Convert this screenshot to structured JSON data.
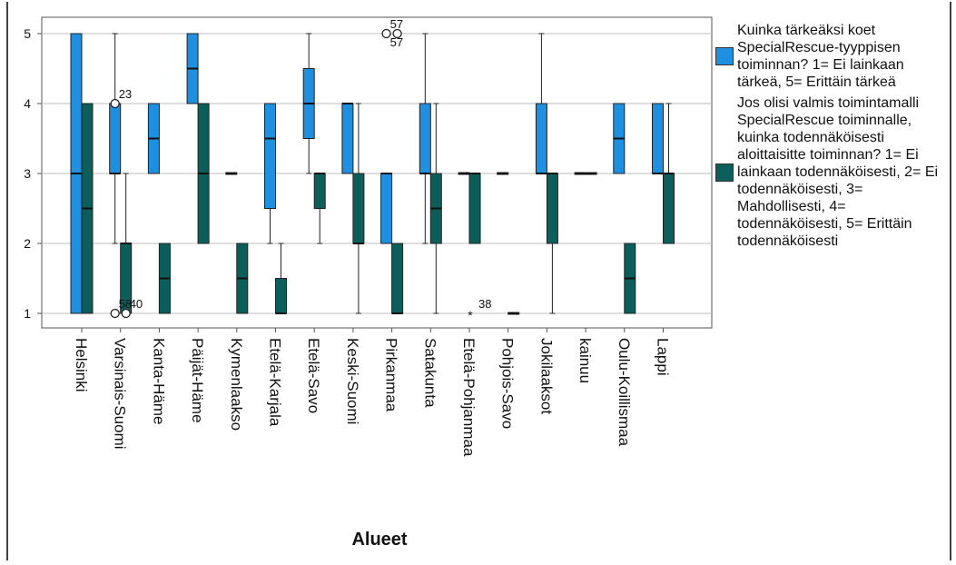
{
  "chart_data": {
    "type": "boxplot",
    "xlabel": "Alueet",
    "ylabel": "",
    "ylim": [
      1,
      5
    ],
    "yticks": [
      "1",
      "2",
      "3",
      "4",
      "5"
    ],
    "grid": "horizontal",
    "legend_position": "right",
    "categories": [
      "Helsinki",
      "Varsinais-Suomi",
      "Kanta-Häme",
      "Päijät-Häme",
      "Kymenlaakso",
      "Etelä-Karjala",
      "Etelä-Savo",
      "Keski-Suomi",
      "Pirkanmaa",
      "Satakunta",
      "Etelä-Pohjanmaa",
      "Pohjois-Savo",
      "Jokilaaksot",
      "kainuu",
      "Oulu-Koillismaa",
      "Lappi"
    ],
    "series": [
      {
        "name": "Kuinka tärkeäksi koet SpecialRescue-tyyppisen toiminnan? 1= Ei lainkaan tärkeä, 5= Erittäin tärkeä",
        "color": "#1f8fe0",
        "boxes": [
          {
            "min": 1,
            "q1": 1,
            "median": 3,
            "q3": 5,
            "max": 5
          },
          {
            "min": 2,
            "q1": 3,
            "median": 3,
            "q3": 4,
            "max": 5
          },
          {
            "min": 3,
            "q1": 3,
            "median": 3.5,
            "q3": 4,
            "max": 4
          },
          {
            "min": 4,
            "q1": 4,
            "median": 4.5,
            "q3": 5,
            "max": 5
          },
          {
            "min": 3,
            "q1": 3,
            "median": 3,
            "q3": 3,
            "max": 3
          },
          {
            "min": 2,
            "q1": 2.5,
            "median": 3.5,
            "q3": 4,
            "max": 4
          },
          {
            "min": 3,
            "q1": 3.5,
            "median": 4,
            "q3": 4.5,
            "max": 5
          },
          {
            "min": 3,
            "q1": 3,
            "median": 4,
            "q3": 4,
            "max": 4
          },
          {
            "min": 2,
            "q1": 2,
            "median": 3,
            "q3": 3,
            "max": 3
          },
          {
            "min": 2,
            "q1": 3,
            "median": 3,
            "q3": 4,
            "max": 5
          },
          {
            "min": 3,
            "q1": 3,
            "median": 3,
            "q3": 3,
            "max": 3
          },
          {
            "min": 3,
            "q1": 3,
            "median": 3,
            "q3": 3,
            "max": 3
          },
          {
            "min": 3,
            "q1": 3,
            "median": 3,
            "q3": 4,
            "max": 5
          },
          {
            "min": 3,
            "q1": 3,
            "median": 3,
            "q3": 3,
            "max": 3
          },
          {
            "min": 3,
            "q1": 3,
            "median": 3.5,
            "q3": 4,
            "max": 4
          },
          {
            "min": 3,
            "q1": 3,
            "median": 3,
            "q3": 4,
            "max": 4
          }
        ],
        "outliers": [
          {
            "category": "Varsinais-Suomi",
            "value": 4,
            "label": "23",
            "marker": "circle"
          },
          {
            "category": "Varsinais-Suomi",
            "value": 1,
            "label": "58",
            "marker": "circle"
          },
          {
            "category": "Pirkanmaa",
            "value": 5,
            "label": "57",
            "marker": "circle"
          }
        ]
      },
      {
        "name": "Jos olisi valmis toimintamalli SpecialRescue toiminnalle, kuinka todennäköisesti aloittaisitte toiminnan? 1= Ei lainkaan todennäköisesti, 2= Ei todennäköisesti, 3= Mahdollisesti, 4= todennäköisesti, 5= Erittäin todennäköisesti",
        "color": "#0b5e5a",
        "boxes": [
          {
            "min": 1,
            "q1": 1,
            "median": 2.5,
            "q3": 4,
            "max": 4
          },
          {
            "min": 1,
            "q1": 1,
            "median": 2,
            "q3": 2,
            "max": 3
          },
          {
            "min": 1,
            "q1": 1,
            "median": 1.5,
            "q3": 2,
            "max": 2
          },
          {
            "min": 2,
            "q1": 2,
            "median": 3,
            "q3": 4,
            "max": 4
          },
          {
            "min": 1,
            "q1": 1,
            "median": 1.5,
            "q3": 2,
            "max": 2
          },
          {
            "min": 1,
            "q1": 1,
            "median": 1,
            "q3": 1.5,
            "max": 2
          },
          {
            "min": 2,
            "q1": 2.5,
            "median": 3,
            "q3": 3,
            "max": 3
          },
          {
            "min": 1,
            "q1": 2,
            "median": 2,
            "q3": 3,
            "max": 4
          },
          {
            "min": 1,
            "q1": 1,
            "median": 1,
            "q3": 2,
            "max": 2
          },
          {
            "min": 1,
            "q1": 2,
            "median": 2.5,
            "q3": 3,
            "max": 4
          },
          {
            "min": 2,
            "q1": 2,
            "median": 3,
            "q3": 3,
            "max": 3
          },
          {
            "min": 1,
            "q1": 1,
            "median": 1,
            "q3": 1,
            "max": 1
          },
          {
            "min": 1,
            "q1": 2,
            "median": 3,
            "q3": 3,
            "max": 3
          },
          {
            "min": 3,
            "q1": 3,
            "median": 3,
            "q3": 3,
            "max": 3
          },
          {
            "min": 1,
            "q1": 1,
            "median": 1.5,
            "q3": 2,
            "max": 2
          },
          {
            "min": 2,
            "q1": 2,
            "median": 3,
            "q3": 3,
            "max": 4
          }
        ],
        "outliers": [
          {
            "category": "Varsinais-Suomi",
            "value": 1,
            "label": "40",
            "marker": "circle"
          },
          {
            "category": "Pirkanmaa",
            "value": 5,
            "label": "57",
            "marker": "circle"
          },
          {
            "category": "Etelä-Pohjanmaa",
            "value": 1,
            "label": "38",
            "marker": "star"
          }
        ]
      }
    ]
  },
  "legend": [
    {
      "label": "Kuinka tärkeäksi koet SpecialRescue-tyyppisen toiminnan? 1= Ei lainkaan tärkeä, 5= Erittäin tärkeä",
      "color": "#1f8fe0"
    },
    {
      "label": "Jos olisi valmis toimintamalli SpecialRescue toiminnalle, kuinka todennäköisesti aloittaisitte toiminnan? 1= Ei lainkaan todennäköisesti, 2= Ei todennäköisesti, 3= Mahdollisesti, 4= todennäköisesti, 5= Erittäin todennäköisesti",
      "color": "#0b5e5a"
    }
  ]
}
